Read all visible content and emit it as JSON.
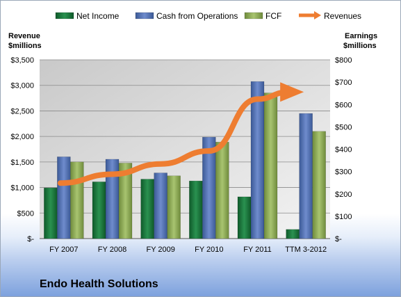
{
  "chart_data": {
    "type": "bar",
    "categories": [
      "FY 2007",
      "FY 2008",
      "FY 2009",
      "FY 2010",
      "FY 2011",
      "TTM 3-2012"
    ],
    "series": [
      {
        "name": "Net Income",
        "axis": "right",
        "values": [
          227,
          254,
          266,
          258,
          187,
          41
        ],
        "color": "#1f7a3e"
      },
      {
        "name": "Cash from Operations",
        "axis": "right",
        "values": [
          366,
          355,
          294,
          454,
          703,
          560
        ],
        "color": "#4f6fb5"
      },
      {
        "name": "FCF",
        "axis": "right",
        "values": [
          343,
          338,
          281,
          432,
          652,
          480
        ],
        "color": "#8fae55"
      },
      {
        "name": "Revenues",
        "axis": "left",
        "type": "line-arrow",
        "values": [
          1086,
          1260,
          1461,
          1716,
          2730,
          2870
        ],
        "color": "#ee7d31"
      }
    ],
    "left_axis": {
      "title_line1": "Revenue",
      "title_line2": "$millions",
      "ylim": [
        0,
        3500
      ],
      "ticks": [
        "$-",
        "$500",
        "$1,000",
        "$1,500",
        "$2,000",
        "$2,500",
        "$3,000",
        "$3,500"
      ]
    },
    "right_axis": {
      "title_line1": "Earnings",
      "title_line2": "$millions",
      "ylim": [
        0,
        800
      ],
      "ticks": [
        "$-",
        "$100",
        "$200",
        "$300",
        "$400",
        "$500",
        "$600",
        "$700",
        "$800"
      ]
    },
    "grid": true,
    "legend_position": "top"
  },
  "company_name": "Endo Health Solutions"
}
